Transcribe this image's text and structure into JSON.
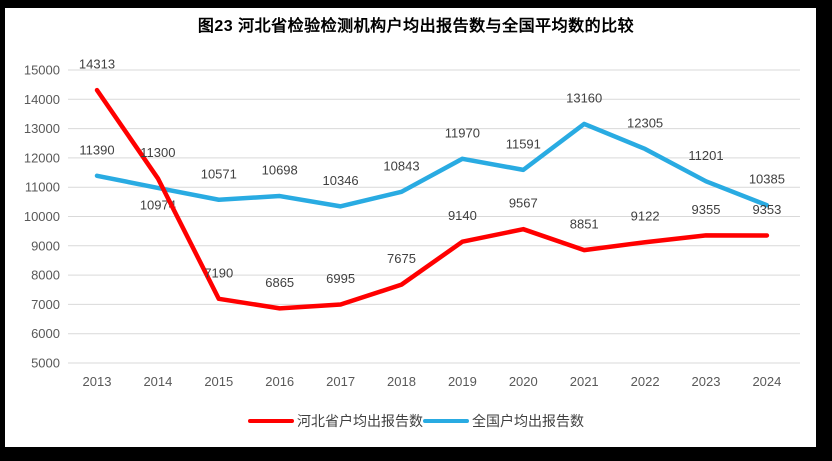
{
  "title": "图23  河北省检验检测机构户均出报告数与全国平均数的比较",
  "chart_data": {
    "type": "line",
    "title": "图23  河北省检验检测机构户均出报告数与全国平均数的比较",
    "x": [
      2013,
      2014,
      2015,
      2016,
      2017,
      2018,
      2019,
      2020,
      2021,
      2022,
      2023,
      2024
    ],
    "series": [
      {
        "id": "hebei",
        "name": "河北省户均出报告数",
        "color": "#FF0000",
        "values": [
          14313,
          11300,
          7190,
          6865,
          6995,
          7675,
          9140,
          9567,
          8851,
          9122,
          9355,
          9353
        ],
        "labels_below": []
      },
      {
        "id": "national",
        "name": "全国户均出报告数",
        "color": "#29ABE2",
        "values": [
          11390,
          10974,
          10571,
          10698,
          10346,
          10843,
          11970,
          11591,
          13160,
          12305,
          11201,
          10385
        ],
        "labels_below": [
          2014
        ]
      }
    ],
    "xlabel": "",
    "ylabel": "",
    "ylim": [
      5000,
      15000
    ],
    "yticks": [
      5000,
      6000,
      7000,
      8000,
      9000,
      10000,
      11000,
      12000,
      13000,
      14000,
      15000
    ],
    "grid": "horizontal",
    "data_labels": true,
    "legend_position": "bottom",
    "colors": {
      "gridline": "#D9D9D9",
      "axis_text": "#595959",
      "data_label_text": "#404040",
      "title_text": "#000000",
      "frame": "#000000"
    }
  }
}
